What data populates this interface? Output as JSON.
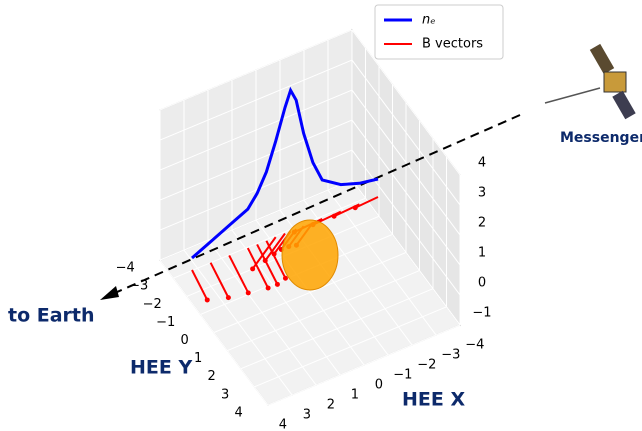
{
  "chart_data": {
    "type": "line3d",
    "x": [
      0,
      0.1,
      0.2,
      0.3,
      0.35,
      0.4,
      0.45,
      0.5,
      0.53,
      0.56,
      0.6,
      0.65,
      0.7,
      0.8,
      0.9,
      1.0
    ],
    "series": [
      {
        "name": "nₑ",
        "color": "#0000ff",
        "values": [
          0,
          0.3,
          0.6,
          0.9,
          1.3,
          1.9,
          2.8,
          3.8,
          4.3,
          3.9,
          2.7,
          1.6,
          0.9,
          0.5,
          0.3,
          0.2
        ]
      },
      {
        "name": "B vectors",
        "color": "#ff0000",
        "values": [
          1.2,
          1.4,
          1.5,
          1.6,
          1.6,
          1.5,
          1.4,
          1.2,
          1.0,
          0.9,
          0.9,
          1.0,
          1.1,
          1.1,
          1.0,
          0.9
        ]
      }
    ],
    "xlabel": "HEE X",
    "ylabel": "HEE Y",
    "xlim": [
      -4,
      4
    ],
    "ylim": [
      -4,
      4
    ],
    "zlim": [
      -1,
      4
    ],
    "xticks": [
      {
        "value": -4,
        "label": "−4"
      },
      {
        "value": -3,
        "label": "−3"
      },
      {
        "value": -2,
        "label": "−2"
      },
      {
        "value": -1,
        "label": "−1"
      },
      0,
      1,
      2,
      3,
      4
    ],
    "yticks": [
      {
        "value": -4,
        "label": "−4"
      },
      {
        "value": -3,
        "label": "−3"
      },
      {
        "value": -2,
        "label": "−2"
      },
      {
        "value": -1,
        "label": "−1"
      },
      0,
      1,
      2,
      3,
      4
    ],
    "zticks": [
      {
        "value": -1,
        "label": "−1"
      },
      0,
      1,
      2,
      3,
      4
    ],
    "annotations": [
      "to Earth",
      "Messenger"
    ],
    "grid": true
  }
}
